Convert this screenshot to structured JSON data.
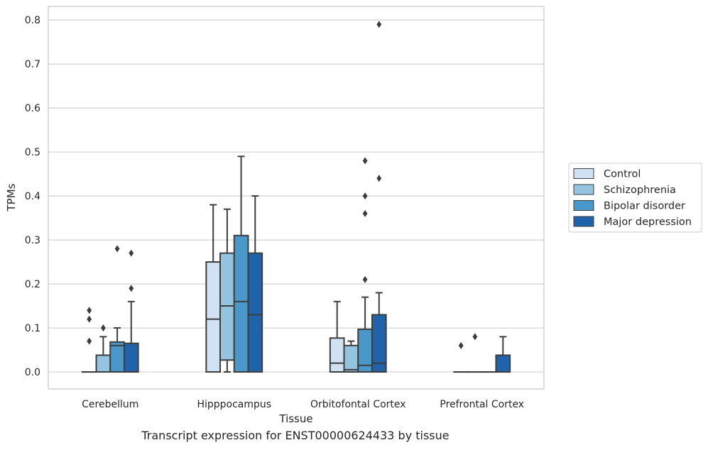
{
  "caption": "Transcript expression for ENST00000624433 by tissue",
  "chart_data": {
    "type": "box",
    "xlabel": "Tissue",
    "ylabel": "TPMs",
    "ylim": [
      -0.04,
      0.83
    ],
    "yticks": [
      "0.0",
      "0.1",
      "0.2",
      "0.3",
      "0.4",
      "0.5",
      "0.6",
      "0.7",
      "0.8"
    ],
    "grid": "horizontal",
    "legend_position": "right",
    "categories": [
      "Cerebellum",
      "Hipppocampus",
      "Orbitofontal Cortex",
      "Prefrontal Cortex"
    ],
    "series": [
      {
        "name": "Control",
        "color": "#d0e1f2",
        "boxes": [
          {
            "q1": 0,
            "median": 0,
            "q3": 0,
            "whisker_low": 0,
            "whisker_high": 0,
            "outliers": [
              0.07,
              0.12,
              0.14
            ]
          },
          {
            "q1": 0,
            "median": 0.12,
            "q3": 0.25,
            "whisker_low": 0,
            "whisker_high": 0.38,
            "outliers": []
          },
          {
            "q1": 0,
            "median": 0.02,
            "q3": 0.077,
            "whisker_low": 0,
            "whisker_high": 0.16,
            "outliers": []
          },
          {
            "q1": 0,
            "median": 0,
            "q3": 0,
            "whisker_low": 0,
            "whisker_high": 0,
            "outliers": [
              0.06
            ]
          }
        ]
      },
      {
        "name": "Schizophrenia",
        "color": "#94c4df",
        "boxes": [
          {
            "q1": 0,
            "median": 0,
            "q3": 0.038,
            "whisker_low": 0,
            "whisker_high": 0.08,
            "outliers": [
              0.1
            ]
          },
          {
            "q1": 0.027,
            "median": 0.15,
            "q3": 0.27,
            "whisker_low": 0,
            "whisker_high": 0.37,
            "outliers": []
          },
          {
            "q1": 0,
            "median": 0.005,
            "q3": 0.06,
            "whisker_low": 0,
            "whisker_high": 0.07,
            "outliers": []
          },
          {
            "q1": 0,
            "median": 0,
            "q3": 0,
            "whisker_low": 0,
            "whisker_high": 0,
            "outliers": [
              0.08
            ]
          }
        ]
      },
      {
        "name": "Bipolar disorder",
        "color": "#4a98c9",
        "boxes": [
          {
            "q1": 0,
            "median": 0.06,
            "q3": 0.068,
            "whisker_low": 0,
            "whisker_high": 0.1,
            "outliers": [
              0.28
            ]
          },
          {
            "q1": 0,
            "median": 0.16,
            "q3": 0.31,
            "whisker_low": 0,
            "whisker_high": 0.49,
            "outliers": []
          },
          {
            "q1": 0,
            "median": 0.015,
            "q3": 0.097,
            "whisker_low": 0,
            "whisker_high": 0.17,
            "outliers": [
              0.21,
              0.36,
              0.4,
              0.48
            ]
          },
          {
            "q1": 0,
            "median": 0,
            "q3": 0,
            "whisker_low": 0,
            "whisker_high": 0,
            "outliers": []
          }
        ]
      },
      {
        "name": "Major depression",
        "color": "#2163aa",
        "boxes": [
          {
            "q1": 0,
            "median": 0,
            "q3": 0.065,
            "whisker_low": 0,
            "whisker_high": 0.16,
            "outliers": [
              0.19,
              0.27
            ]
          },
          {
            "q1": 0,
            "median": 0.13,
            "q3": 0.27,
            "whisker_low": 0,
            "whisker_high": 0.4,
            "outliers": []
          },
          {
            "q1": 0,
            "median": 0.02,
            "q3": 0.13,
            "whisker_low": 0,
            "whisker_high": 0.18,
            "outliers": [
              0.44,
              0.79
            ]
          },
          {
            "q1": 0,
            "median": 0,
            "q3": 0.038,
            "whisker_low": 0,
            "whisker_high": 0.08,
            "outliers": []
          }
        ]
      }
    ]
  }
}
